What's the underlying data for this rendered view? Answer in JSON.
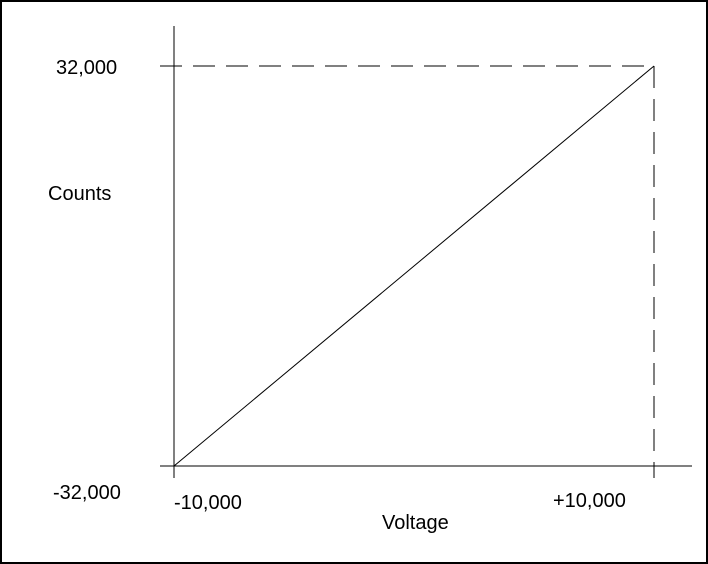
{
  "chart_data": {
    "type": "line",
    "xlabel": "Voltage",
    "ylabel": "Counts",
    "xlim": [
      -10000,
      10000
    ],
    "ylim": [
      -32000,
      32000
    ],
    "x_tick_labels": [
      "-10,000",
      "+10,000"
    ],
    "y_tick_labels": [
      "32,000",
      "-32,000"
    ],
    "series": [
      {
        "x": [
          -10000,
          10000
        ],
        "y": [
          -32000,
          32000
        ]
      }
    ],
    "guides": "dashed lines from y-axis to (+10,000, 32,000) and from that point down to x-axis",
    "grid": false,
    "legend": "none",
    "colors": {
      "line": "#000000",
      "background": "#ffffff"
    }
  }
}
